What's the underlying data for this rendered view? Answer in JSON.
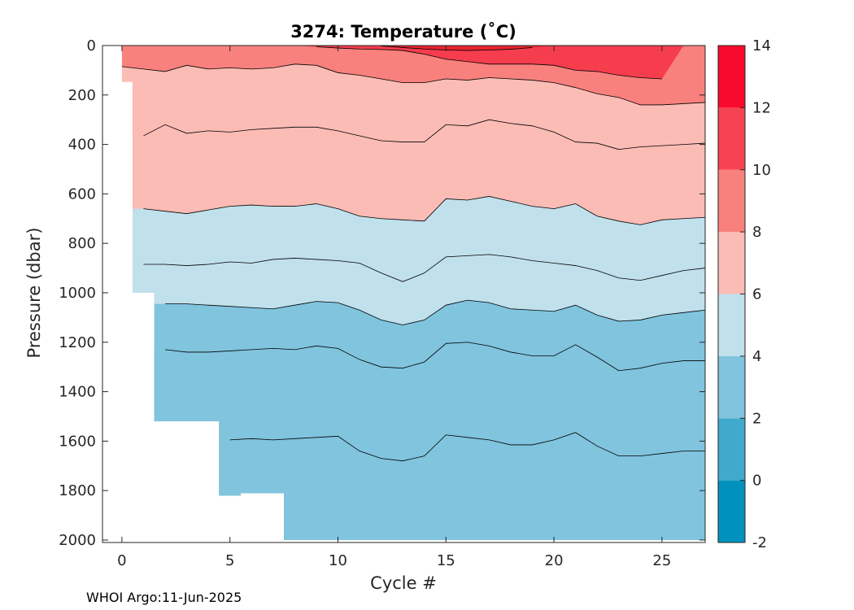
{
  "chart_data": {
    "type": "contour",
    "title": "3274:  Temperature (˚C)",
    "xlabel": "Cycle #",
    "ylabel": "Pressure (dbar)",
    "xlim": [
      -0.9,
      27
    ],
    "ylim": [
      2010,
      0
    ],
    "xticks": [
      0,
      5,
      10,
      15,
      20,
      25
    ],
    "yticks": [
      0,
      200,
      400,
      600,
      800,
      1000,
      1200,
      1400,
      1600,
      1800,
      2000
    ],
    "colorbar": {
      "ticks": [
        -2,
        0,
        2,
        4,
        6,
        8,
        10,
        12,
        14
      ],
      "levels": [
        {
          "from": -2,
          "to": 0,
          "color": "#0092bd"
        },
        {
          "from": 0,
          "to": 2,
          "color": "#40aacc"
        },
        {
          "from": 2,
          "to": 4,
          "color": "#80c4de"
        },
        {
          "from": 4,
          "to": 6,
          "color": "#c0e0ec"
        },
        {
          "from": 6,
          "to": 8,
          "color": "#fbbcb5"
        },
        {
          "from": 8,
          "to": 10,
          "color": "#f8817d"
        },
        {
          "from": 10,
          "to": 12,
          "color": "#f64352"
        },
        {
          "from": 12,
          "to": 14,
          "color": "#f70a2b"
        }
      ]
    },
    "cycles": [
      0,
      1,
      2,
      3,
      4,
      5,
      6,
      7,
      8,
      9,
      10,
      11,
      12,
      13,
      14,
      15,
      16,
      17,
      18,
      19,
      20,
      21,
      22,
      23,
      24,
      25,
      26,
      27
    ],
    "max_pressure": [
      145,
      1000,
      1520,
      1520,
      1520,
      1820,
      1810,
      1810,
      2000,
      2000,
      2000,
      2000,
      2000,
      2000,
      2000,
      2000,
      2000,
      2000,
      2000,
      2000,
      2000,
      2000,
      2000,
      2000,
      2000,
      2000,
      2000,
      2000
    ],
    "isotherms": [
      {
        "temp": 12,
        "depths": [
          0,
          0,
          0,
          0,
          0,
          0,
          0,
          0,
          0,
          0,
          0,
          0,
          2,
          8,
          14,
          18,
          20,
          18,
          15,
          8,
          0,
          0,
          0,
          0,
          0,
          0,
          0,
          0
        ]
      },
      {
        "temp": 10,
        "depths": [
          0,
          0,
          0,
          0,
          0,
          0,
          0,
          0,
          0,
          5,
          10,
          14,
          16,
          20,
          35,
          55,
          65,
          75,
          75,
          75,
          80,
          100,
          105,
          120,
          130,
          135,
          0,
          0
        ]
      },
      {
        "temp": 8,
        "depths": [
          85,
          95,
          105,
          80,
          95,
          90,
          95,
          90,
          75,
          80,
          110,
          120,
          135,
          150,
          150,
          135,
          140,
          130,
          135,
          140,
          150,
          170,
          195,
          210,
          240,
          240,
          235,
          230
        ]
      },
      {
        "temp": 6,
        "depths": [
          365,
          365,
          320,
          355,
          345,
          350,
          340,
          335,
          330,
          330,
          345,
          365,
          385,
          390,
          390,
          320,
          325,
          300,
          315,
          325,
          350,
          390,
          395,
          420,
          410,
          405,
          400,
          395
        ]
      },
      {
        "temp": 5,
        "depths": [
          660,
          660,
          670,
          680,
          665,
          650,
          645,
          650,
          650,
          640,
          660,
          690,
          700,
          705,
          710,
          620,
          625,
          610,
          630,
          650,
          660,
          640,
          690,
          710,
          725,
          705,
          700,
          695
        ]
      },
      {
        "temp": 4,
        "depths": [
          885,
          885,
          885,
          890,
          885,
          875,
          880,
          865,
          860,
          865,
          870,
          880,
          920,
          955,
          920,
          855,
          850,
          845,
          855,
          870,
          880,
          890,
          910,
          940,
          950,
          930,
          910,
          900
        ]
      },
      {
        "temp": 3.5,
        "depths": [
          1045,
          1045,
          1045,
          1045,
          1050,
          1055,
          1060,
          1065,
          1050,
          1035,
          1040,
          1070,
          1110,
          1130,
          1110,
          1050,
          1030,
          1040,
          1065,
          1070,
          1075,
          1050,
          1090,
          1115,
          1110,
          1090,
          1080,
          1070
        ]
      },
      {
        "temp": 3,
        "depths": [
          1230,
          1230,
          1230,
          1240,
          1240,
          1235,
          1230,
          1225,
          1230,
          1215,
          1225,
          1270,
          1300,
          1305,
          1280,
          1205,
          1200,
          1215,
          1240,
          1255,
          1255,
          1210,
          1260,
          1315,
          1305,
          1285,
          1275,
          1275
        ]
      },
      {
        "temp": 2.5,
        "depths": [
          1595,
          1595,
          1595,
          1595,
          1595,
          1595,
          1590,
          1595,
          1590,
          1585,
          1580,
          1640,
          1670,
          1680,
          1660,
          1575,
          1585,
          1595,
          1615,
          1615,
          1595,
          1565,
          1620,
          1660,
          1660,
          1650,
          1640,
          1640
        ]
      }
    ],
    "band_colors": [
      "#f63d4e",
      "#f8817d",
      "#fbbcb5",
      "#fbbcb5",
      "#c0e0ec",
      "#c0e0ec",
      "#80c4de",
      "#80c4de",
      "#80c4de"
    ],
    "surface_color": "#e8242f"
  },
  "footer": "WHOI Argo:11-Jun-2025"
}
